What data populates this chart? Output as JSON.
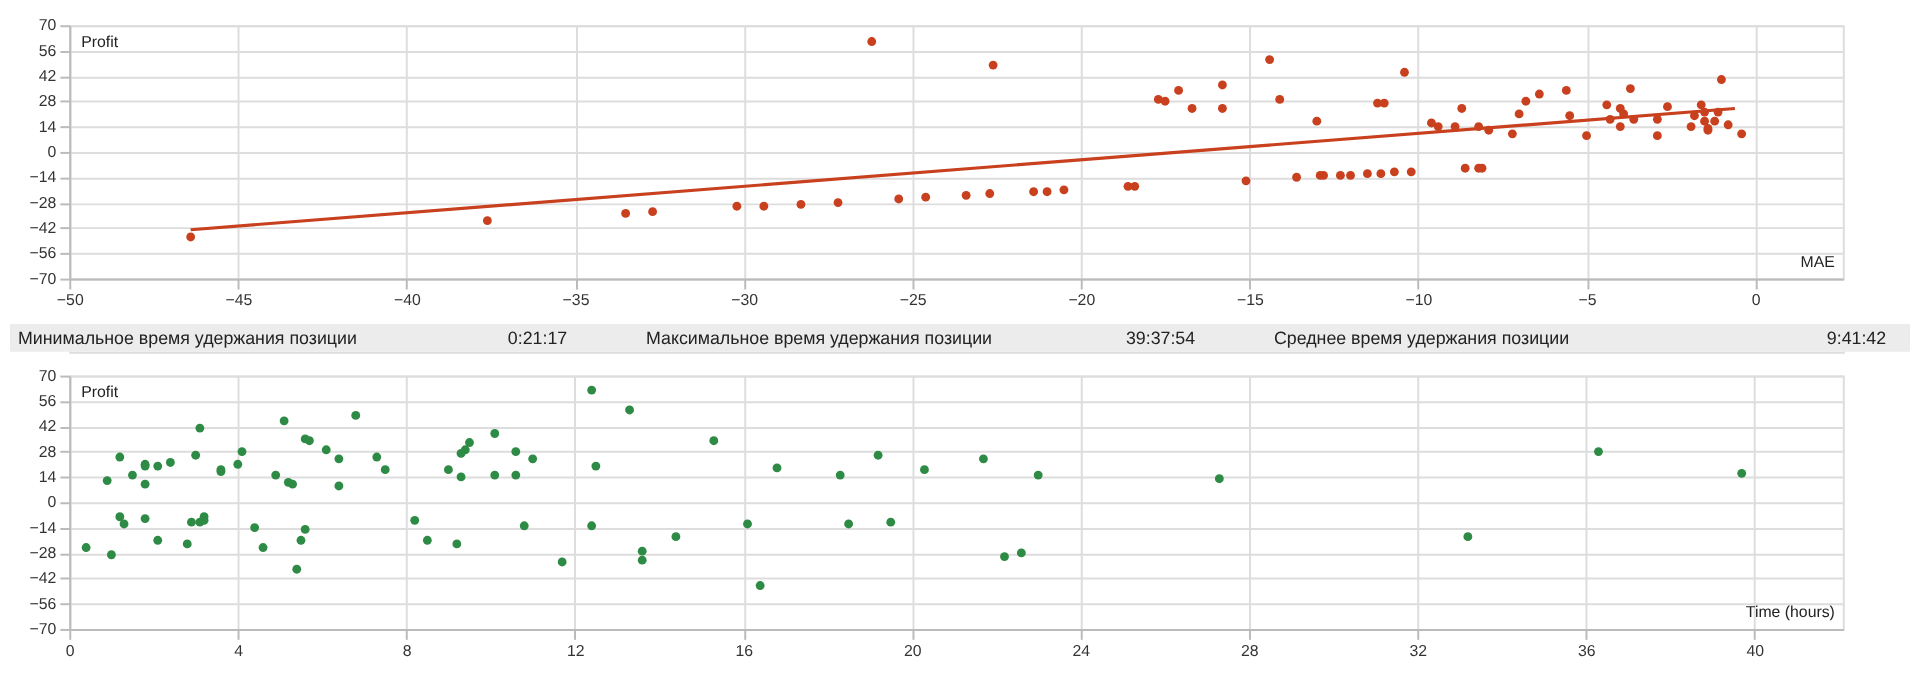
{
  "chart_data": [
    {
      "type": "scatter",
      "xlabel": "MAE",
      "ylabel": "Profit",
      "xlim": [
        -50,
        2.6
      ],
      "ylim": [
        -70,
        70
      ],
      "xticks": [
        -50,
        -45,
        -40,
        -35,
        -30,
        -25,
        -20,
        -15,
        -10,
        -5,
        0
      ],
      "yticks": [
        -70,
        -56,
        -42,
        -28,
        -14,
        0,
        14,
        28,
        42,
        56,
        70
      ],
      "grid": true,
      "series": [
        {
          "type": "scatter",
          "marker": "circle",
          "color": "#c8401e",
          "x": [
            -46.4,
            -37.6,
            -33.5,
            -32.7,
            -30.2,
            -29.4,
            -28.3,
            -27.2,
            -26.2,
            -25.4,
            -24.6,
            -23.4,
            -22.7,
            -22.6,
            -21.4,
            -21.0,
            -20.5,
            -18.6,
            -18.4,
            -17.7,
            -17.5,
            -17.1,
            -16.7,
            -15.8,
            -15.8,
            -15.1,
            -14.4,
            -14.1,
            -13.6,
            -13.0,
            -12.9,
            -12.8,
            -12.3,
            -12.0,
            -11.5,
            -11.2,
            -11.0,
            -11.1,
            -10.7,
            -10.4,
            -10.2,
            -9.6,
            -9.4,
            -8.9,
            -8.7,
            -8.6,
            -8.2,
            -8.1,
            -8.2,
            -7.9,
            -7.2,
            -7.0,
            -6.8,
            -6.4,
            -5.6,
            -5.5,
            -5.0,
            -4.4,
            -4.3,
            -4.0,
            -4.0,
            -3.9,
            -3.7,
            -3.6,
            -2.9,
            -2.9,
            -2.6,
            -1.9,
            -1.8,
            -1.6,
            -1.5,
            -1.5,
            -1.4,
            -1.4,
            -1.2,
            -1.1,
            -1.0,
            -0.8,
            -0.4
          ],
          "values": [
            -47,
            -38,
            -34,
            -33,
            -30,
            -30,
            -29,
            -28,
            61,
            -26,
            -25,
            -24,
            -23,
            48,
            -22,
            -22,
            -21,
            -19,
            -19,
            29,
            28,
            34,
            24,
            24,
            37,
            -16,
            51,
            29,
            -14,
            17,
            -13,
            -13,
            -13,
            -13,
            -12,
            27,
            27,
            -12,
            -11,
            44,
            -11,
            16,
            14,
            14,
            24,
            -9,
            -9,
            -9,
            14,
            12,
            10,
            21,
            28,
            32,
            34,
            20,
            9,
            26,
            18,
            14,
            24,
            21,
            35,
            18,
            18,
            9,
            25,
            14,
            20,
            26,
            22,
            17,
            13,
            12,
            17,
            22,
            40,
            15,
            10
          ]
        },
        {
          "type": "line",
          "color": "#c8401e",
          "x": [
            -46.4,
            -0.6
          ],
          "values": [
            -43,
            24
          ]
        }
      ]
    },
    {
      "type": "other",
      "annotations": [
        "Минимальное время удержания позиции",
        "0:21:17",
        "Максимальное время удержания позиции",
        "39:37:54",
        "Среднее время удержания позиции",
        "9:41:42"
      ]
    },
    {
      "type": "scatter",
      "xlabel": "Time (hours)",
      "ylabel": "Profit",
      "xlim": [
        0,
        42.1
      ],
      "ylim": [
        -70,
        70
      ],
      "xticks": [
        0,
        4,
        8,
        12,
        16,
        20,
        24,
        28,
        32,
        36,
        40
      ],
      "yticks": [
        -70,
        -56,
        -42,
        -28,
        -14,
        0,
        14,
        28,
        42,
        56,
        70
      ],
      "grid": true,
      "series": [
        {
          "type": "scatter",
          "marker": "circle",
          "color": "#2e8b45",
          "x": [
            0.4,
            0.9,
            1.0,
            1.2,
            1.2,
            1.3,
            1.5,
            1.8,
            1.8,
            1.8,
            1.8,
            2.1,
            2.1,
            2.4,
            2.8,
            2.9,
            3.0,
            3.1,
            3.1,
            3.2,
            3.2,
            3.6,
            3.6,
            4.0,
            4.1,
            4.4,
            4.6,
            4.9,
            5.1,
            5.2,
            5.3,
            5.4,
            5.5,
            5.6,
            5.7,
            5.6,
            6.1,
            6.4,
            6.4,
            6.8,
            7.3,
            7.5,
            8.2,
            8.5,
            9.0,
            9.2,
            9.3,
            9.3,
            9.4,
            9.5,
            10.1,
            10.1,
            10.6,
            10.6,
            10.8,
            11.0,
            11.7,
            12.4,
            12.4,
            12.5,
            13.3,
            13.6,
            13.6,
            14.4,
            15.3,
            16.1,
            16.4,
            16.8,
            18.3,
            18.5,
            19.2,
            19.5,
            20.3,
            21.7,
            22.2,
            22.6,
            23.0,
            27.3,
            33.2,
            36.3,
            39.7
          ],
          "values": [
            -25,
            12,
            -29,
            25,
            -8,
            -12,
            15,
            21,
            20,
            10,
            -9,
            -21,
            20,
            22,
            -23,
            -11,
            26,
            41,
            -11,
            -10,
            -8,
            17,
            18,
            21,
            28,
            -14,
            -25,
            15,
            45,
            11,
            10,
            -37,
            -21,
            35,
            34,
            -15,
            29,
            24,
            9,
            48,
            25,
            18,
            -10,
            -21,
            18,
            -23,
            14,
            27,
            29,
            33,
            38,
            15,
            15,
            28,
            -13,
            24,
            -33,
            -13,
            62,
            20,
            51,
            -27,
            -32,
            -19,
            34,
            -12,
            -46,
            19,
            15,
            -12,
            26,
            -11,
            18,
            24,
            -30,
            -28,
            15,
            13,
            -19,
            28,
            16
          ]
        }
      ]
    }
  ]
}
